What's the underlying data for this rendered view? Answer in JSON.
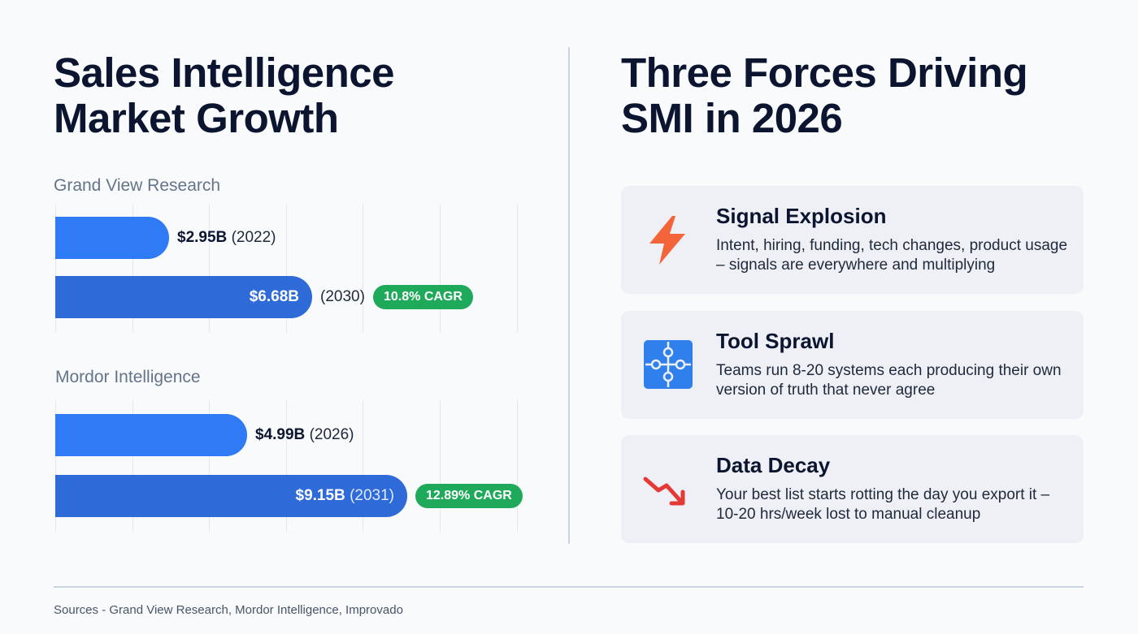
{
  "left": {
    "title_lines": [
      "Sales Intelligence",
      "Market Growth"
    ]
  },
  "right": {
    "title_lines": [
      "Three Forces Driving",
      "SMI in 2026"
    ],
    "cards": [
      {
        "icon": "lightning-icon",
        "title": "Signal Explosion",
        "description": "Intent, hiring, funding, tech changes, product usage – signals are everywhere and multiplying",
        "icon_color": "#f4643a"
      },
      {
        "icon": "puzzle-icon",
        "title": "Tool Sprawl",
        "description": "Teams run 8-20 systems each producing their own version of truth that never agree",
        "icon_color": "#2f80ed"
      },
      {
        "icon": "trend-down-icon",
        "title": "Data Decay",
        "description": "Your best list starts rotting the day you export it – 10-20 hrs/week lost to manual cleanup",
        "icon_color": "#e53935"
      }
    ]
  },
  "footer": {
    "sources": "Sources - Grand View Research, Mordor Intelligence, Improvado"
  },
  "chart_data": {
    "type": "bar",
    "orientation": "horizontal",
    "unit": "$B",
    "grid": true,
    "xlim": [
      0,
      12
    ],
    "groups": [
      {
        "name": "Grand View Research",
        "bars": [
          {
            "value": 2.95,
            "value_label": "$2.95B",
            "year_label": "(2022)"
          },
          {
            "value": 6.68,
            "value_label": "$6.68B",
            "year_label": "(2030)",
            "cagr": "10.8% CAGR"
          }
        ]
      },
      {
        "name": "Mordor Intelligence",
        "bars": [
          {
            "value": 4.99,
            "value_label": "$4.99B",
            "year_label": "(2026)"
          },
          {
            "value": 9.15,
            "value_label": "$9.15B",
            "year_label": "(2031)",
            "cagr": "12.89% CAGR"
          }
        ]
      }
    ],
    "colors": {
      "bar_light": "#2f7bf5",
      "bar_dark": "#2e6bd8",
      "cagr_badge": "#1fa95a"
    }
  }
}
